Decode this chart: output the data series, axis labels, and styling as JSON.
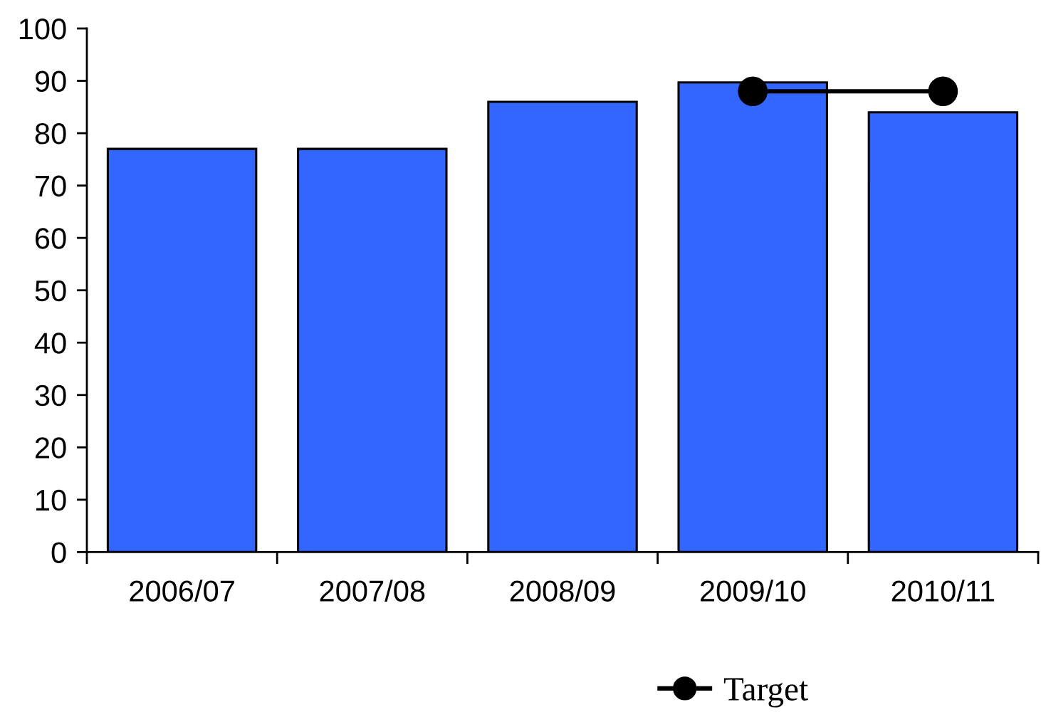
{
  "chart_data": {
    "type": "bar",
    "categories": [
      "2006/07",
      "2007/08",
      "2008/09",
      "2009/10",
      "2010/11"
    ],
    "series": [
      {
        "color": "#3366ff",
        "values": [
          77,
          77,
          86,
          89.7,
          84
        ]
      },
      {
        "type": "line",
        "name": "Target",
        "color": "#000000",
        "marker": "circle",
        "line_style": "solid",
        "values": [
          null,
          null,
          null,
          88,
          88
        ]
      }
    ],
    "ylim": [
      0,
      100
    ],
    "yticks": [
      0,
      10,
      20,
      30,
      40,
      50,
      60,
      70,
      80,
      90,
      100
    ],
    "legend": "bottom"
  }
}
